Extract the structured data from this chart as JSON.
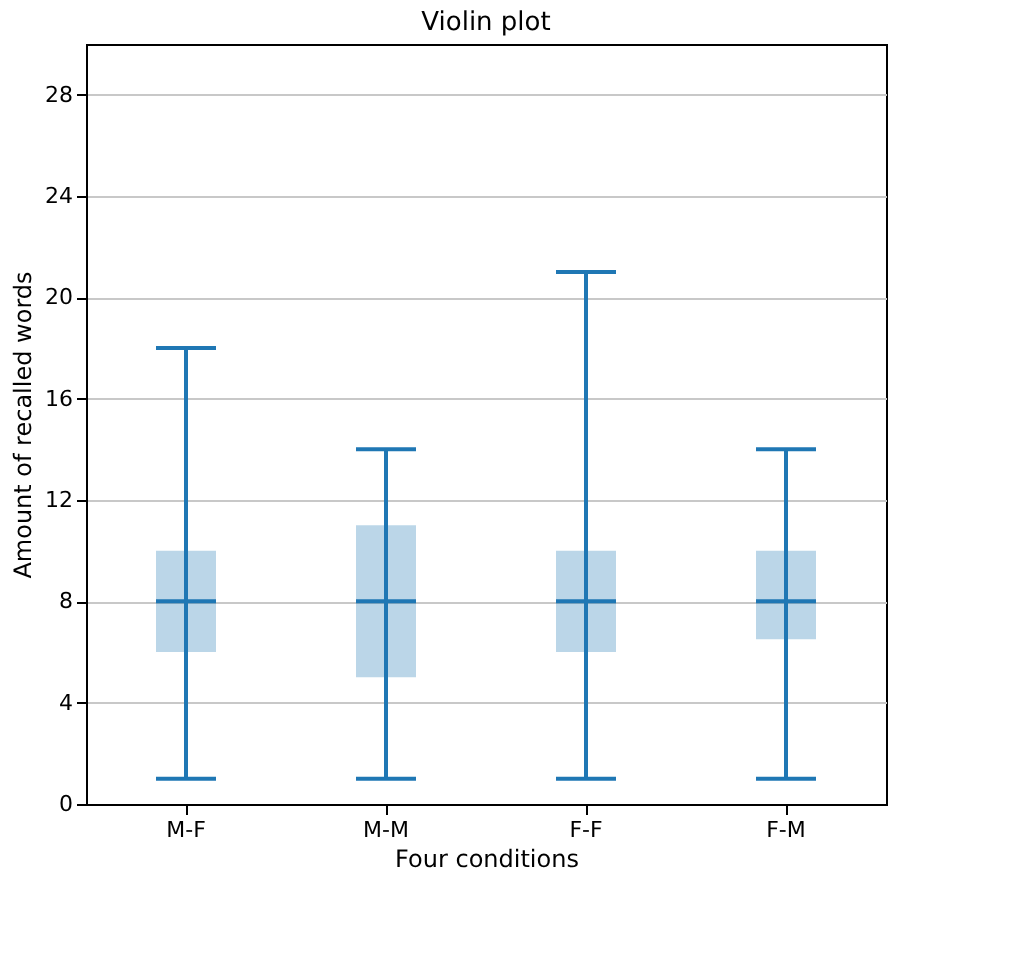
{
  "chart_data": {
    "type": "box",
    "title": "Violin plot",
    "xlabel": "Four conditions",
    "ylabel": "Amount of recalled words",
    "categories": [
      "M-F",
      "M-M",
      "F-F",
      "F-M"
    ],
    "series": [
      {
        "color": "#1f77b4",
        "boxes": [
          {
            "low": 1,
            "q1": 6,
            "median": 8,
            "q3": 10,
            "high": 18
          },
          {
            "low": 1,
            "q1": 5,
            "median": 8,
            "q3": 11,
            "high": 14
          },
          {
            "low": 1,
            "q1": 6,
            "median": 8,
            "q3": 10,
            "high": 21
          },
          {
            "low": 1,
            "q1": 6.5,
            "median": 8,
            "q3": 10,
            "high": 14
          }
        ]
      }
    ],
    "ylim": [
      0,
      30
    ],
    "yticks": [
      0,
      4,
      8,
      12,
      16,
      20,
      24,
      28
    ],
    "grid": "y"
  }
}
